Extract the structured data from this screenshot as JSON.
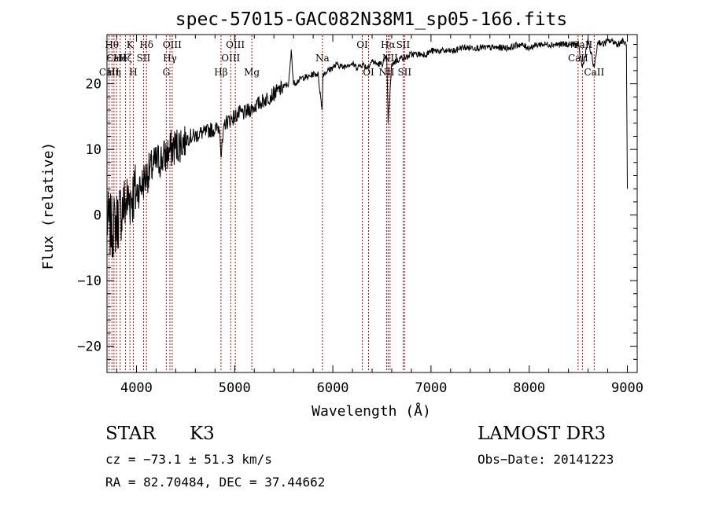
{
  "chart_data": {
    "type": "line",
    "title": "spec-57015-GAC082N38M1_sp05-166.fits",
    "xlabel": "Wavelength (Å)",
    "ylabel": "Flux (relative)",
    "xlim": [
      3700,
      9100
    ],
    "ylim": [
      -24,
      27.5
    ],
    "x_ticks": [
      4000,
      5000,
      6000,
      7000,
      8000,
      9000
    ],
    "x_tick_labels": [
      "4000",
      "5000",
      "6000",
      "7000",
      "8000",
      "9000"
    ],
    "y_ticks": [
      -20,
      -10,
      0,
      10,
      20
    ],
    "y_tick_labels": [
      "−20",
      "−10",
      "0",
      "10",
      "20"
    ],
    "line_color": "#000000",
    "marker_color": "#cc0000",
    "series": [
      {
        "name": "flux",
        "x": [
          3700,
          3750,
          3800,
          3850,
          3900,
          3950,
          4000,
          4050,
          4100,
          4150,
          4200,
          4250,
          4300,
          4350,
          4400,
          4450,
          4500,
          4550,
          4600,
          4650,
          4700,
          4750,
          4800,
          4850,
          4861,
          4900,
          4950,
          5000,
          5050,
          5100,
          5150,
          5200,
          5250,
          5300,
          5350,
          5400,
          5450,
          5500,
          5550,
          5577,
          5600,
          5650,
          5700,
          5750,
          5800,
          5850,
          5890,
          5900,
          5950,
          6000,
          6050,
          6100,
          6150,
          6200,
          6250,
          6300,
          6350,
          6400,
          6450,
          6500,
          6550,
          6563,
          6600,
          6650,
          6700,
          6750,
          6800,
          6850,
          6900,
          6950,
          7000,
          7050,
          7100,
          7150,
          7200,
          7250,
          7300,
          7350,
          7400,
          7450,
          7500,
          7600,
          7700,
          7800,
          7900,
          8000,
          8100,
          8200,
          8300,
          8400,
          8500,
          8542,
          8600,
          8662,
          8700,
          8750,
          8800,
          8850,
          8900,
          8950,
          8990,
          9000
        ],
        "y": [
          -1,
          -2,
          -1,
          1,
          2,
          3,
          3.5,
          4.5,
          6,
          7,
          8,
          8.5,
          9,
          10,
          10.5,
          11,
          11.5,
          12,
          12,
          12.5,
          12.5,
          13,
          13,
          13.5,
          9,
          14,
          14.5,
          15,
          15.5,
          15.5,
          16,
          16.5,
          17,
          17.5,
          18,
          18.5,
          19,
          19.5,
          20,
          25,
          20,
          20.5,
          21,
          21,
          21.5,
          21.5,
          16,
          21.5,
          22,
          22.5,
          23,
          22.5,
          23,
          23,
          22.5,
          23,
          22.5,
          23.5,
          23,
          23,
          24,
          14,
          23,
          23.5,
          24,
          24,
          24.5,
          24.5,
          24.5,
          24.5,
          25,
          25,
          25,
          25,
          25,
          25,
          25.5,
          25.5,
          25.5,
          25.5,
          25.5,
          25.5,
          25.5,
          25.5,
          26,
          25.5,
          26,
          26,
          26,
          26,
          26,
          22.5,
          26.5,
          22.5,
          26.5,
          26,
          26.5,
          26.5,
          26,
          26.5,
          26,
          4
        ]
      }
    ],
    "lines": [
      {
        "x": 3722,
        "label": "CaII",
        "row": 3
      },
      {
        "x": 3750,
        "label": "Hθ",
        "row": 1
      },
      {
        "x": 3771,
        "label": "Hη",
        "row": 3
      },
      {
        "x": 3797,
        "label": "CaII",
        "row": 2
      },
      {
        "x": 3835,
        "label": "Hé",
        "row": 2
      },
      {
        "x": 3889,
        "label": "Hζ",
        "row": 2
      },
      {
        "x": 3934,
        "label": "K",
        "row": 1
      },
      {
        "x": 3968,
        "label": "H",
        "row": 3
      },
      {
        "x": 4072,
        "label": "SII",
        "row": 2
      },
      {
        "x": 4102,
        "label": "Hδ",
        "row": 1
      },
      {
        "x": 4304,
        "label": "G",
        "row": 3
      },
      {
        "x": 4341,
        "label": "Hγ",
        "row": 2
      },
      {
        "x": 4364,
        "label": "OIII",
        "row": 1
      },
      {
        "x": 4861,
        "label": "Hβ",
        "row": 3
      },
      {
        "x": 4960,
        "label": "OIII",
        "row": 2
      },
      {
        "x": 5007,
        "label": "OIII",
        "row": 1
      },
      {
        "x": 5175,
        "label": "Mg",
        "row": 3
      },
      {
        "x": 5894,
        "label": "Na",
        "row": 2
      },
      {
        "x": 6300,
        "label": "OI",
        "row": 1
      },
      {
        "x": 6364,
        "label": "OI",
        "row": 3
      },
      {
        "x": 6548,
        "label": "NII",
        "row": 3
      },
      {
        "x": 6563,
        "label": "Hα",
        "row": 1
      },
      {
        "x": 6583,
        "label": "NII",
        "row": 2
      },
      {
        "x": 6716,
        "label": "SII",
        "row": 1
      },
      {
        "x": 6731,
        "label": "SII",
        "row": 3
      },
      {
        "x": 8498,
        "label": "CaII",
        "row": 2
      },
      {
        "x": 8542,
        "label": "CaII",
        "row": 1
      },
      {
        "x": 8662,
        "label": "CaII",
        "row": 3
      }
    ]
  },
  "info": {
    "class_label": "STAR",
    "subclass": "K3",
    "survey": "LAMOST DR3",
    "cz": "cz = −73.1 ± 51.3 km/s",
    "obs_date": "Obs−Date: 20141223",
    "coords": "RA =  82.70484, DEC =  37.44662"
  }
}
